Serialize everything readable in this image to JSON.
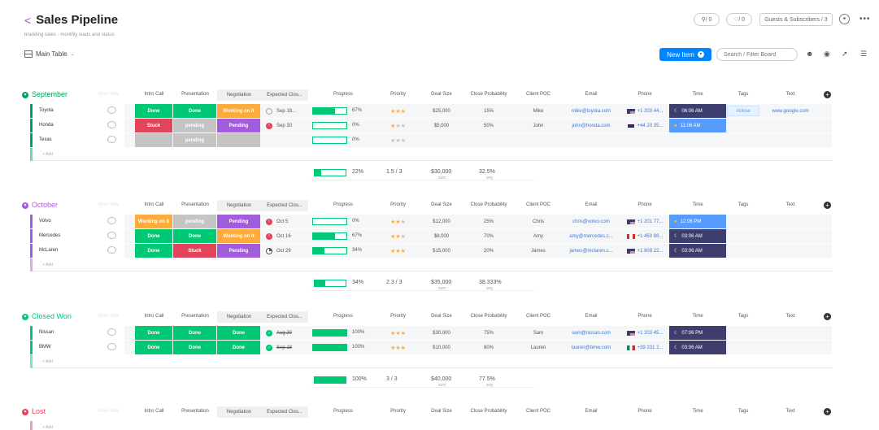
{
  "board": {
    "title": "Sales Pipeline",
    "subtitle": "branding sales - monthly leads and status",
    "view": "Main Table",
    "activity_count": "/ 0",
    "likes_count": "/ 0",
    "guests_label": "Guests & Subscribers / 3",
    "new_item_label": "New Item",
    "search_placeholder": "Search / Filter Board"
  },
  "columns": [
    "Intro Call",
    "Presentation",
    "Negotiation",
    "Expected Clos...",
    "Progress",
    "Priority",
    "Deal Size",
    "Close Probability",
    "Client POC",
    "Email",
    "Phone",
    "Time",
    "Tags",
    "Text"
  ],
  "ghost_label": "Main Nav",
  "add_label": "+ Add",
  "colors": {
    "done": "#00c875",
    "stuck": "#e2445c",
    "working": "#fdab3d",
    "pending": "#a25ddc",
    "pending_gray": "#c4c4c4",
    "time_dark": "#3d3e6e",
    "time_blue": "#579bfc",
    "time_yellow": "#ffcb00"
  },
  "groups": [
    {
      "name": "September",
      "color": "#00a359",
      "rows": [
        {
          "name": "Toyota",
          "intro": {
            "text": "Done",
            "color": "#00c875"
          },
          "pres": {
            "text": "Done",
            "color": "#00c875"
          },
          "nego": {
            "text": "Working on it",
            "color": "#fdab3d"
          },
          "date": {
            "text": "Sep 18...",
            "icon": "empty",
            "strike": false
          },
          "progress": 67,
          "progress_label": "67%",
          "priority": 3,
          "deal": "$25,000",
          "prob": "15%",
          "poc": "Mike",
          "email": "mike@toyota.com",
          "phone": "+1 203 44...",
          "flag": "us",
          "time": "06:06 AM",
          "time_style": "dark",
          "tag": "#close",
          "text": "www.google.com"
        },
        {
          "name": "Honda",
          "intro": {
            "text": "Stuck",
            "color": "#e2445c"
          },
          "pres": {
            "text": "pending",
            "color": "#c4c4c4"
          },
          "nego": {
            "text": "Pending",
            "color": "#a25ddc"
          },
          "date": {
            "text": "Sep 30",
            "icon": "alert",
            "strike": false
          },
          "progress": 0,
          "progress_label": "0%",
          "priority": 1,
          "deal": "$5,000",
          "prob": "50%",
          "poc": "John",
          "email": "john@honda.com",
          "phone": "+44 20 35...",
          "flag": "uk",
          "time": "11:06 AM",
          "time_style": "blue",
          "tag": "",
          "text": ""
        },
        {
          "name": "Texas",
          "intro": {
            "text": "",
            "color": "#c4c4c4"
          },
          "pres": {
            "text": "pending",
            "color": "#c4c4c4"
          },
          "nego": {
            "text": "",
            "color": "#c4c4c4"
          },
          "date": {
            "text": "",
            "icon": "none",
            "strike": false
          },
          "progress": 0,
          "progress_label": "0%",
          "priority": 0,
          "deal": "",
          "prob": "",
          "poc": "",
          "email": "",
          "phone": "",
          "flag": "",
          "time": "",
          "time_style": "",
          "tag": "",
          "text": ""
        }
      ],
      "summary": {
        "progress": 22,
        "progress_label": "22%",
        "priority": "1.5 / 3",
        "deal": "$30,000",
        "deal_sub": "sum",
        "prob": "32.5%",
        "prob_sub": "avg"
      }
    },
    {
      "name": "October",
      "color": "#a25ddc",
      "rows": [
        {
          "name": "Volvo",
          "intro": {
            "text": "Working on it",
            "color": "#fdab3d"
          },
          "pres": {
            "text": "pending",
            "color": "#c4c4c4"
          },
          "nego": {
            "text": "Pending",
            "color": "#a25ddc"
          },
          "date": {
            "text": "Oct 5",
            "icon": "alert",
            "strike": false
          },
          "progress": 0,
          "progress_label": "0%",
          "priority": 2,
          "deal": "$12,000",
          "prob": "25%",
          "poc": "Chris",
          "email": "chris@volvo.com",
          "phone": "+1 201 77...",
          "flag": "us",
          "time": "12:06 PM",
          "time_style": "blue",
          "tag": "",
          "text": ""
        },
        {
          "name": "Mercedes",
          "intro": {
            "text": "Done",
            "color": "#00c875"
          },
          "pres": {
            "text": "Done",
            "color": "#00c875"
          },
          "nego": {
            "text": "Working on it",
            "color": "#fdab3d"
          },
          "date": {
            "text": "Oct 16",
            "icon": "alert",
            "strike": false
          },
          "progress": 67,
          "progress_label": "67%",
          "priority": 2,
          "deal": "$8,000",
          "prob": "70%",
          "poc": "Amy",
          "email": "amy@mercedes.c...",
          "phone": "+1 450 88...",
          "flag": "ca",
          "time": "03:06 AM",
          "time_style": "dark",
          "tag": "",
          "text": ""
        },
        {
          "name": "McLaren",
          "intro": {
            "text": "Done",
            "color": "#00c875"
          },
          "pres": {
            "text": "Stuck",
            "color": "#e2445c"
          },
          "nego": {
            "text": "Pending",
            "color": "#a25ddc"
          },
          "date": {
            "text": "Oct 29",
            "icon": "partial",
            "strike": false
          },
          "progress": 34,
          "progress_label": "34%",
          "priority": 3,
          "deal": "$15,000",
          "prob": "20%",
          "poc": "James",
          "email": "james@mclaren.c...",
          "phone": "+1 808 22...",
          "flag": "us",
          "time": "03:06 AM",
          "time_style": "dark",
          "tag": "",
          "text": ""
        }
      ],
      "summary": {
        "progress": 34,
        "progress_label": "34%",
        "priority": "2.3 / 3",
        "deal": "$35,000",
        "deal_sub": "sum",
        "prob": "38.333%",
        "prob_sub": "avg"
      }
    },
    {
      "name": "Closed Won",
      "color": "#00c875",
      "rows": [
        {
          "name": "Nissan",
          "intro": {
            "text": "Done",
            "color": "#00c875"
          },
          "pres": {
            "text": "Done",
            "color": "#00c875"
          },
          "nego": {
            "text": "Done",
            "color": "#00c875"
          },
          "date": {
            "text": "Aug 20",
            "icon": "check",
            "strike": true
          },
          "progress": 100,
          "progress_label": "100%",
          "priority": 3,
          "deal": "$30,000",
          "prob": "75%",
          "poc": "Sam",
          "email": "sam@nissan.com",
          "phone": "+1 203 45...",
          "flag": "us",
          "time": "07:06 PM",
          "time_style": "dark",
          "tag": "",
          "text": ""
        },
        {
          "name": "BMW",
          "intro": {
            "text": "Done",
            "color": "#00c875"
          },
          "pres": {
            "text": "Done",
            "color": "#00c875"
          },
          "nego": {
            "text": "Done",
            "color": "#00c875"
          },
          "date": {
            "text": "Sep 18",
            "icon": "check",
            "strike": true
          },
          "progress": 100,
          "progress_label": "100%",
          "priority": 3,
          "deal": "$10,000",
          "prob": "80%",
          "poc": "Lauren",
          "email": "lauren@bmw.com",
          "phone": "+39 331 2...",
          "flag": "it",
          "time": "03:06 AM",
          "time_style": "dark",
          "tag": "",
          "text": ""
        }
      ],
      "summary": {
        "progress": 100,
        "progress_label": "100%",
        "priority": "3 / 3",
        "deal": "$40,000",
        "deal_sub": "sum",
        "prob": "77.5%",
        "prob_sub": "avg"
      }
    },
    {
      "name": "Lost",
      "color": "#e2445c",
      "rows": [],
      "summary": null
    }
  ]
}
